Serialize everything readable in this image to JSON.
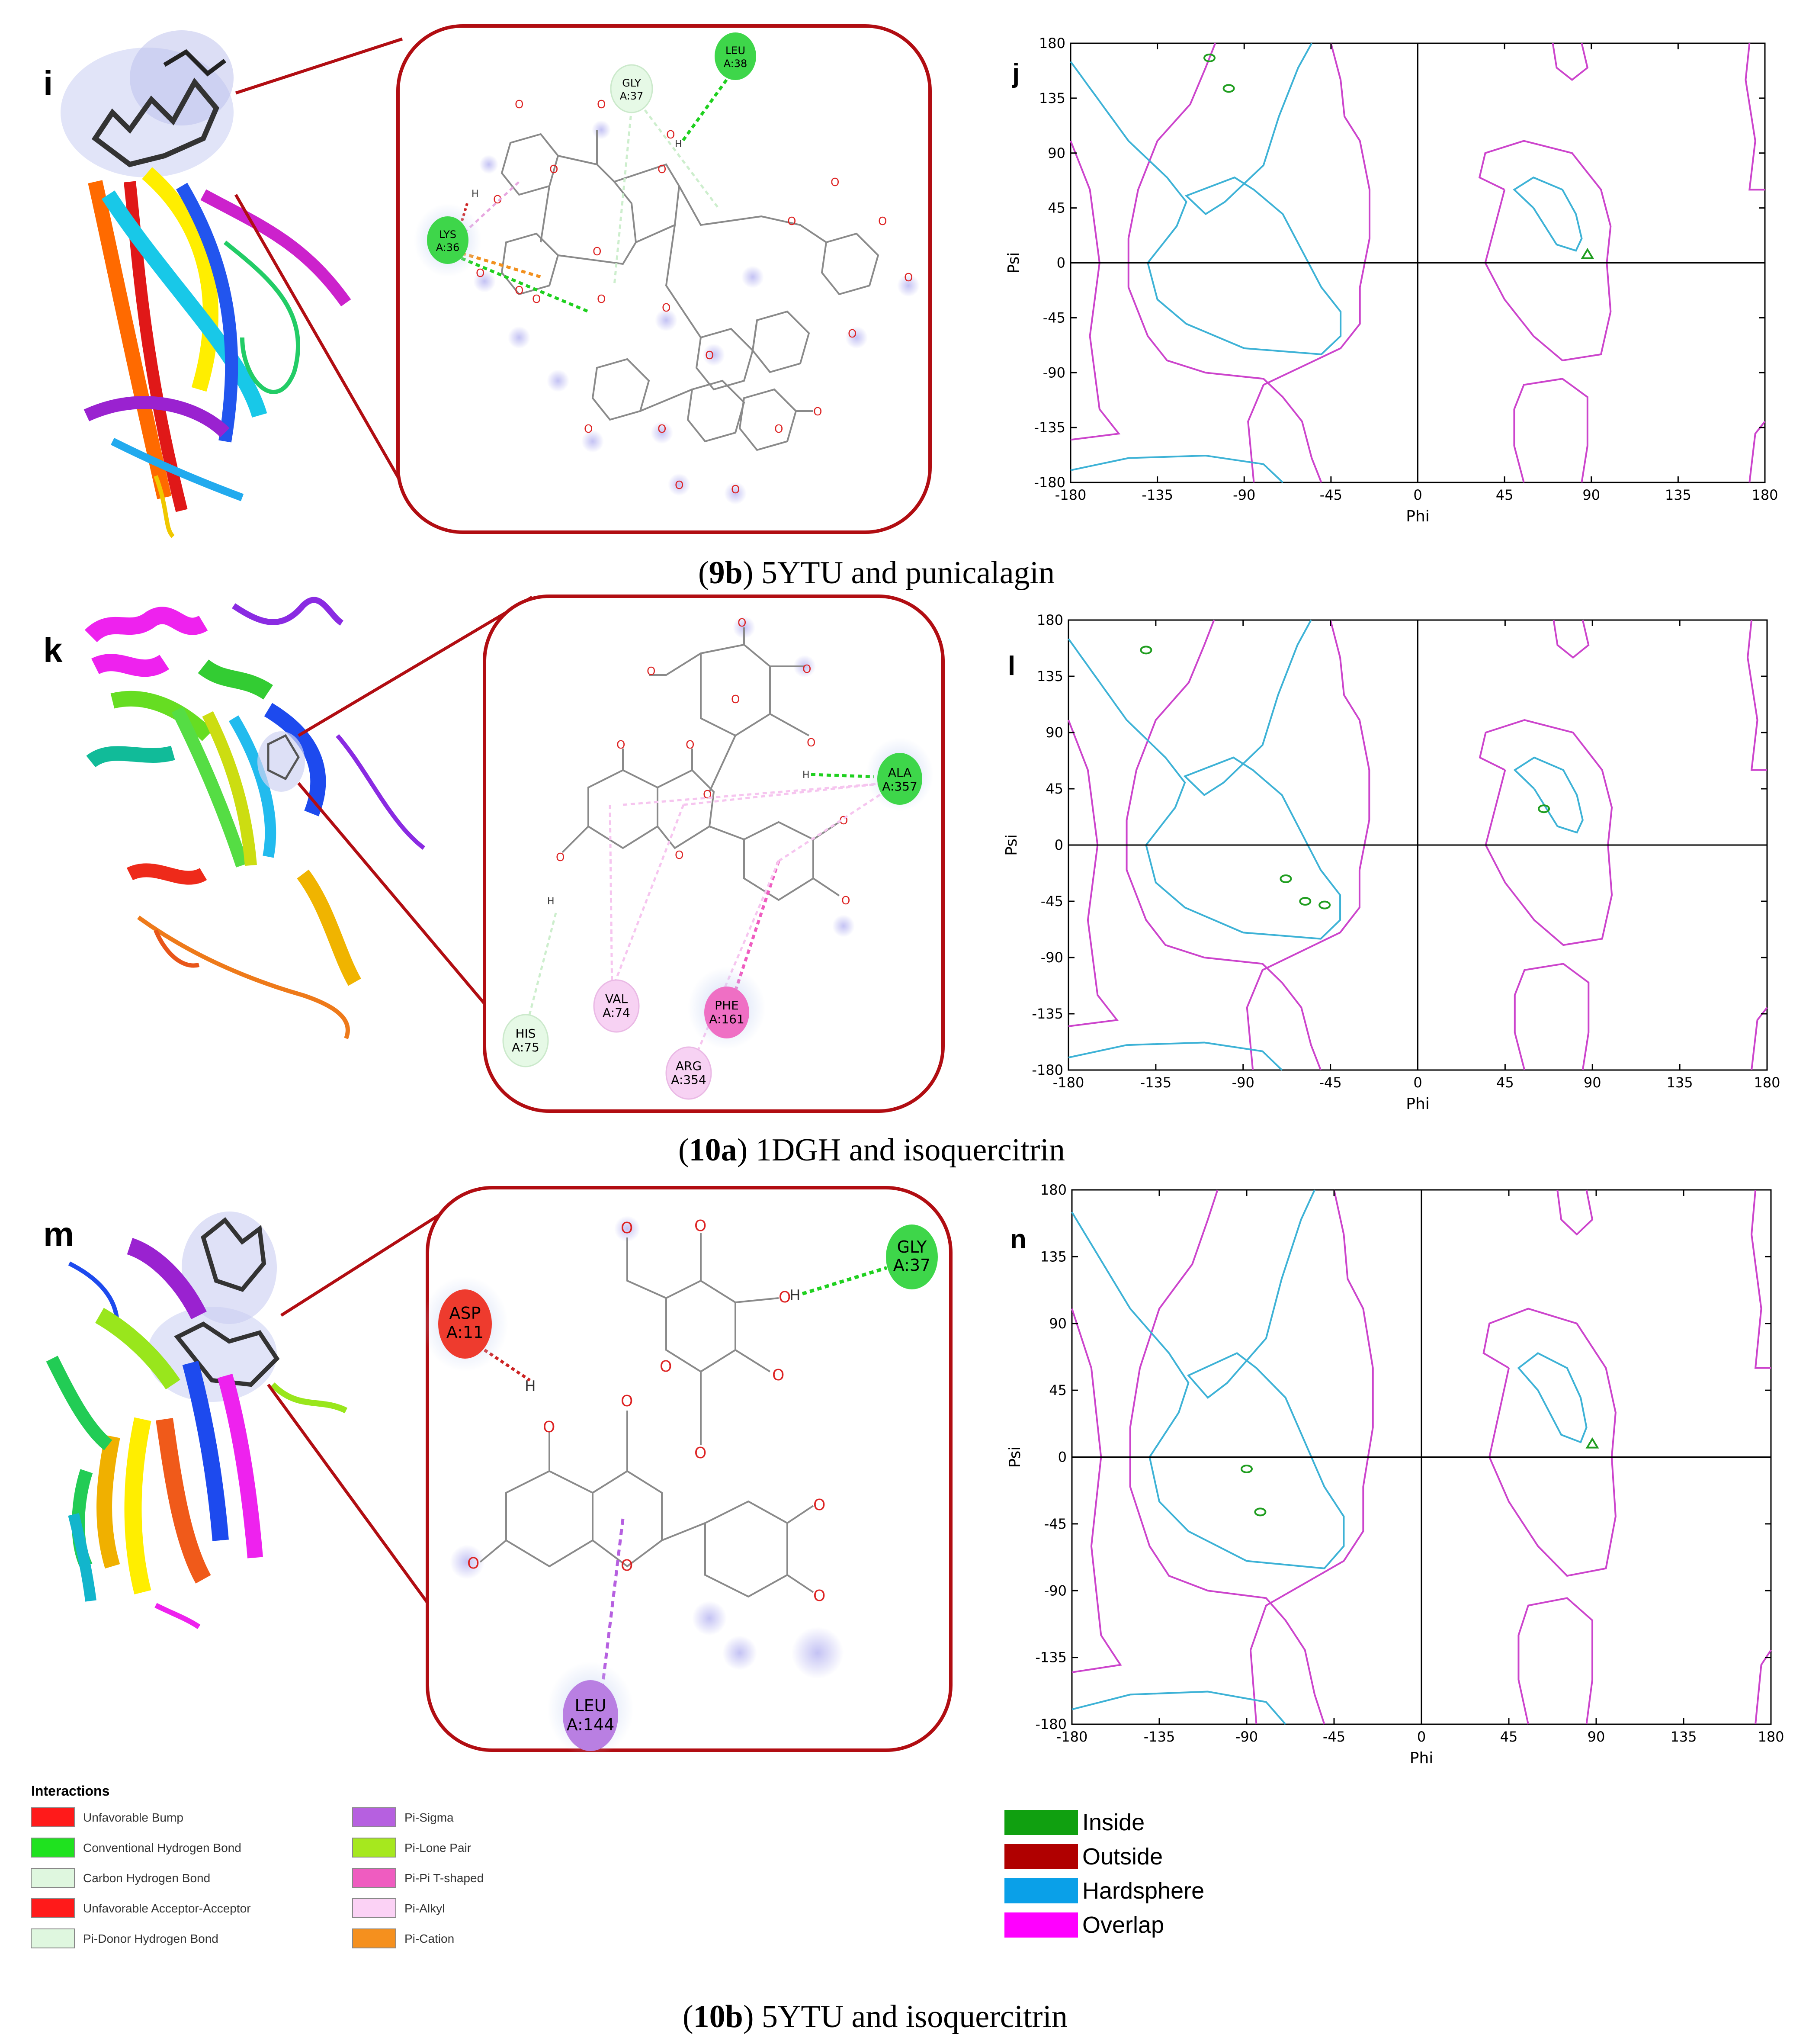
{
  "figure": {
    "rows": [
      {
        "id": "9b",
        "caption_id": "9b",
        "caption_text": " 5YTU and punicalagin",
        "structure_letter": "i",
        "plot_letter": "j",
        "residues": [
          {
            "label": "GLY",
            "sub": "A:37",
            "color": "#e6f9e6"
          },
          {
            "label": "LEU",
            "sub": "A:38",
            "color": "#3ed64a"
          },
          {
            "label": "LYS",
            "sub": "A:36",
            "color": "#3ed64a"
          }
        ],
        "plot_points": [
          {
            "phi": -108,
            "psi": 168,
            "shape": "circle"
          },
          {
            "phi": -98,
            "psi": 143,
            "shape": "circle"
          },
          {
            "phi": 88,
            "psi": 7,
            "shape": "triangle"
          }
        ]
      },
      {
        "id": "10a",
        "caption_id": "10a",
        "caption_text": " 1DGH and isoquercitrin",
        "structure_letter": "k",
        "plot_letter": "l",
        "residues": [
          {
            "label": "ALA",
            "sub": "A:357",
            "color": "#3ed64a"
          },
          {
            "label": "VAL",
            "sub": "A:74",
            "color": "#f7d2f3"
          },
          {
            "label": "PHE",
            "sub": "A:161",
            "color": "#ef6fc4"
          },
          {
            "label": "HIS",
            "sub": "A:75",
            "color": "#e6f9e6"
          },
          {
            "label": "ARG",
            "sub": "A:354",
            "color": "#f7d2f3"
          }
        ],
        "plot_points": [
          {
            "phi": -140,
            "psi": 156,
            "shape": "circle"
          },
          {
            "phi": -68,
            "psi": -27,
            "shape": "circle"
          },
          {
            "phi": -58,
            "psi": -45,
            "shape": "circle"
          },
          {
            "phi": -48,
            "psi": -48,
            "shape": "circle"
          },
          {
            "phi": 65,
            "psi": 29,
            "shape": "circle"
          }
        ]
      },
      {
        "id": "10b",
        "caption_id": "10b",
        "caption_text": " 5YTU and isoquercitrin",
        "structure_letter": "m",
        "plot_letter": "n",
        "residues": [
          {
            "label": "GLY",
            "sub": "A:37",
            "color": "#3ed64a"
          },
          {
            "label": "ASP",
            "sub": "A:11",
            "color": "#ee3b2e"
          },
          {
            "label": "LEU",
            "sub": "A:144",
            "color": "#b97fe2"
          }
        ],
        "plot_points": [
          {
            "phi": -90,
            "psi": -8,
            "shape": "circle"
          },
          {
            "phi": -83,
            "psi": -37,
            "shape": "circle"
          },
          {
            "phi": 88,
            "psi": 9,
            "shape": "triangle"
          }
        ]
      }
    ],
    "plot_axes": {
      "xlabel": "Phi",
      "ylabel": "Psi",
      "ticks": [
        "-180",
        "-135",
        "-90",
        "-45",
        "0",
        "45",
        "90",
        "135",
        "180"
      ],
      "range": [
        -180,
        180
      ]
    },
    "interactions_legend": {
      "title": "Interactions",
      "items": [
        {
          "label": "Unfavorable Bump",
          "color": "#ff1a1a"
        },
        {
          "label": "Conventional Hydrogen Bond",
          "color": "#1fe21f"
        },
        {
          "label": "Carbon Hydrogen Bond",
          "color": "#dff7df"
        },
        {
          "label": "Unfavorable Acceptor-Acceptor",
          "color": "#ff1a1a"
        },
        {
          "label": "Pi-Donor Hydrogen Bond",
          "color": "#dff7df"
        },
        {
          "label": "Pi-Sigma",
          "color": "#b660e0"
        },
        {
          "label": "Pi-Lone Pair",
          "color": "#a6e81e"
        },
        {
          "label": "Pi-Pi T-shaped",
          "color": "#ef5cc0"
        },
        {
          "label": "Pi-Alkyl",
          "color": "#fbd2f5"
        },
        {
          "label": "Pi-Cation",
          "color": "#f5901e"
        }
      ]
    },
    "ramachandran_legend": {
      "items": [
        {
          "label": "Inside",
          "color": "#10a010"
        },
        {
          "label": "Outside",
          "color": "#b00000"
        },
        {
          "label": "Hardsphere",
          "color": "#0aa0e8"
        },
        {
          "label": "Overlap",
          "color": "#ff00ff"
        }
      ]
    },
    "colors": {
      "zoom_frame": "#b10d12",
      "hardsphere_contour": "#3db2d6",
      "overlap_contour": "#cc44cc",
      "point_green": "#1f9d1f"
    }
  }
}
